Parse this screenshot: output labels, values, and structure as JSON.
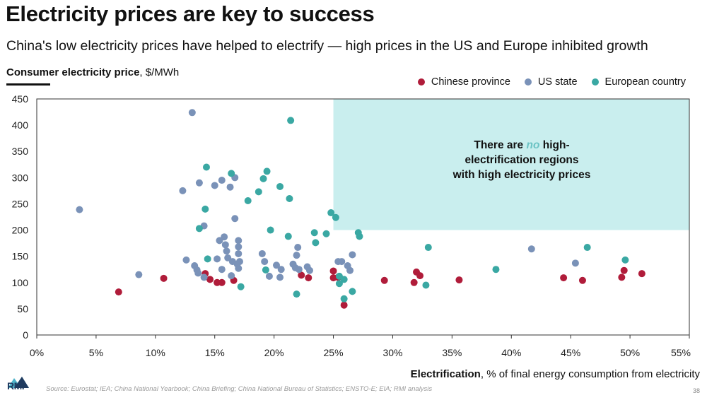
{
  "header": {
    "title": "Electricity prices are key to success",
    "subtitle": "China's low electricity prices have helped to electrify — high prices in the US and Europe inhibited growth"
  },
  "axis_labels": {
    "y_bold": "Consumer electricity price",
    "y_rest": ", $/MWh",
    "x_bold": "Electrification",
    "x_rest": ", % of final energy consumption from electricity"
  },
  "legend": [
    {
      "label": "Chinese province",
      "color": "#b01c3a"
    },
    {
      "label": "US state",
      "color": "#7a92b8"
    },
    {
      "label": "European country",
      "color": "#3aa8a3"
    }
  ],
  "annotation": {
    "line1_a": "There are ",
    "line1_em": "no",
    "line1_b": " high-",
    "line2": "electrification regions",
    "line3": "with high electricity prices"
  },
  "footer": {
    "logo": "RMI",
    "source": "Source: Eurostat; IEA; China National Yearbook; China Briefing; China National Bureau of Statistics; ENSTO-E; EIA; RMI analysis",
    "page": "38"
  },
  "chart_data": {
    "type": "scatter",
    "title": "Electricity prices are key to success",
    "xlabel": "Electrification, % of final energy consumption from electricity",
    "ylabel": "Consumer electricity price, $/MWh",
    "xlim": [
      0,
      55
    ],
    "ylim": [
      0,
      450
    ],
    "x_ticks": [
      0,
      5,
      10,
      15,
      20,
      25,
      30,
      35,
      40,
      45,
      50,
      55
    ],
    "x_tick_labels": [
      "0%",
      "5%",
      "10%",
      "15%",
      "20%",
      "25%",
      "30%",
      "35%",
      "40%",
      "45%",
      "50%",
      "55%"
    ],
    "y_ticks": [
      0,
      50,
      100,
      150,
      200,
      250,
      300,
      350,
      400,
      450
    ],
    "y_tick_labels": [
      "0",
      "50",
      "100",
      "150",
      "200",
      "250",
      "300",
      "350",
      "400",
      "450"
    ],
    "grid": false,
    "legend_position": "top-right",
    "highlight_region": {
      "x": [
        25,
        55
      ],
      "y": [
        200,
        450
      ],
      "color": "#c9eeee"
    },
    "series": [
      {
        "name": "Chinese province",
        "color": "#b01c3a",
        "points": [
          [
            6.9,
            82
          ],
          [
            10.7,
            108
          ],
          [
            14.2,
            117
          ],
          [
            14.6,
            106
          ],
          [
            15.2,
            100
          ],
          [
            15.6,
            100
          ],
          [
            16.6,
            104
          ],
          [
            22.3,
            114
          ],
          [
            22.9,
            109
          ],
          [
            25.0,
            122
          ],
          [
            25.0,
            109
          ],
          [
            25.4,
            110
          ],
          [
            25.9,
            57
          ],
          [
            29.3,
            104
          ],
          [
            31.8,
            100
          ],
          [
            32.0,
            120
          ],
          [
            32.3,
            113
          ],
          [
            35.6,
            105
          ],
          [
            44.4,
            109
          ],
          [
            46.0,
            104
          ],
          [
            49.3,
            110
          ],
          [
            49.5,
            123
          ],
          [
            51.0,
            117
          ]
        ]
      },
      {
        "name": "US state",
        "color": "#7a92b8",
        "points": [
          [
            3.6,
            239
          ],
          [
            8.6,
            115
          ],
          [
            12.3,
            275
          ],
          [
            12.6,
            143
          ],
          [
            13.1,
            424
          ],
          [
            13.3,
            132
          ],
          [
            13.5,
            124
          ],
          [
            13.6,
            118
          ],
          [
            13.7,
            290
          ],
          [
            14.1,
            110
          ],
          [
            14.1,
            208
          ],
          [
            15.0,
            285
          ],
          [
            15.2,
            145
          ],
          [
            15.4,
            180
          ],
          [
            15.6,
            125
          ],
          [
            15.6,
            295
          ],
          [
            15.8,
            187
          ],
          [
            15.9,
            172
          ],
          [
            16.0,
            160
          ],
          [
            16.1,
            147
          ],
          [
            16.3,
            282
          ],
          [
            16.4,
            113
          ],
          [
            16.5,
            140
          ],
          [
            16.7,
            300
          ],
          [
            16.7,
            222
          ],
          [
            16.9,
            135
          ],
          [
            17.0,
            180
          ],
          [
            17.0,
            168
          ],
          [
            17.0,
            155
          ],
          [
            17.1,
            140
          ],
          [
            17.0,
            127
          ],
          [
            19.0,
            155
          ],
          [
            19.2,
            140
          ],
          [
            19.6,
            112
          ],
          [
            20.2,
            133
          ],
          [
            20.5,
            110
          ],
          [
            20.6,
            125
          ],
          [
            21.6,
            135
          ],
          [
            21.8,
            128
          ],
          [
            21.9,
            152
          ],
          [
            22.0,
            167
          ],
          [
            22.1,
            125
          ],
          [
            22.8,
            130
          ],
          [
            23.0,
            123
          ],
          [
            25.4,
            140
          ],
          [
            25.7,
            140
          ],
          [
            26.2,
            132
          ],
          [
            26.4,
            123
          ],
          [
            26.6,
            153
          ],
          [
            41.7,
            164
          ],
          [
            45.4,
            137
          ]
        ]
      },
      {
        "name": "European country",
        "color": "#3aa8a3",
        "points": [
          [
            13.7,
            203
          ],
          [
            14.2,
            240
          ],
          [
            14.3,
            320
          ],
          [
            14.4,
            145
          ],
          [
            16.4,
            308
          ],
          [
            17.2,
            92
          ],
          [
            17.8,
            256
          ],
          [
            18.7,
            273
          ],
          [
            19.1,
            298
          ],
          [
            19.3,
            124
          ],
          [
            19.4,
            312
          ],
          [
            19.7,
            200
          ],
          [
            20.5,
            283
          ],
          [
            21.2,
            188
          ],
          [
            21.3,
            260
          ],
          [
            21.4,
            409
          ],
          [
            21.9,
            78
          ],
          [
            23.4,
            195
          ],
          [
            23.5,
            176
          ],
          [
            24.4,
            193
          ],
          [
            24.8,
            233
          ],
          [
            25.2,
            224
          ],
          [
            25.5,
            112
          ],
          [
            25.5,
            98
          ],
          [
            25.9,
            106
          ],
          [
            25.9,
            69
          ],
          [
            26.6,
            83
          ],
          [
            27.1,
            195
          ],
          [
            27.2,
            188
          ],
          [
            32.8,
            95
          ],
          [
            33.0,
            167
          ],
          [
            38.7,
            125
          ],
          [
            46.4,
            167
          ],
          [
            49.6,
            143
          ]
        ]
      }
    ]
  }
}
